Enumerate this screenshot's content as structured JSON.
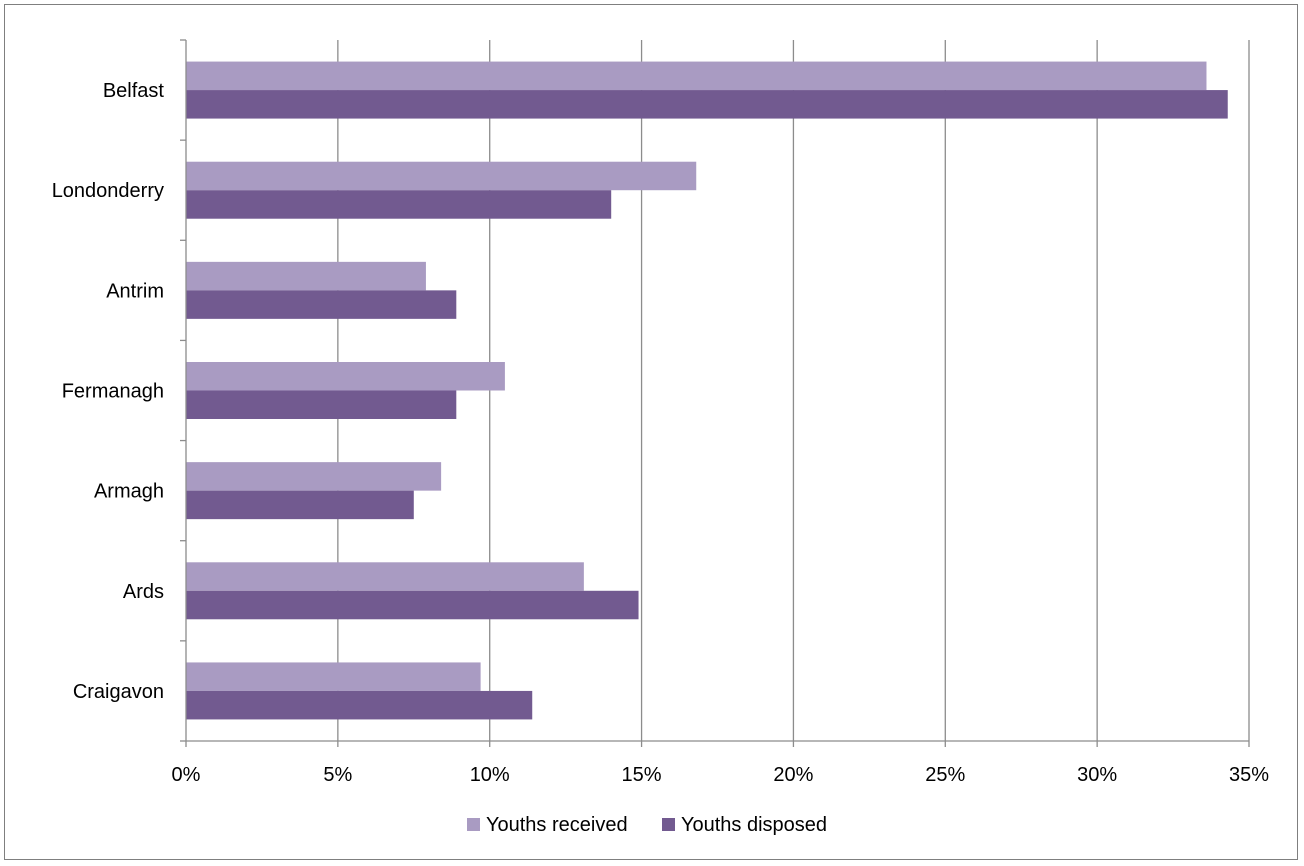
{
  "chart_data": {
    "type": "bar",
    "orientation": "horizontal",
    "title": "",
    "xlabel": "",
    "ylabel": "",
    "categories": [
      "Belfast",
      "Londonderry",
      "Antrim",
      "Fermanagh",
      "Armagh",
      "Ards",
      "Craigavon"
    ],
    "series": [
      {
        "name": "Youths received",
        "color": "#a99bc2",
        "values": [
          33.6,
          16.8,
          7.9,
          10.5,
          8.4,
          13.1,
          9.7
        ]
      },
      {
        "name": "Youths disposed",
        "color": "#725a90",
        "values": [
          34.3,
          14.0,
          8.9,
          8.9,
          7.5,
          14.9,
          11.4
        ]
      }
    ],
    "xlim": [
      0,
      35
    ],
    "x_ticks": [
      0,
      5,
      10,
      15,
      20,
      25,
      30,
      35
    ],
    "x_tick_labels": [
      "0%",
      "5%",
      "10%",
      "15%",
      "20%",
      "25%",
      "30%",
      "35%"
    ],
    "grid": "vertical",
    "legend_position": "bottom"
  }
}
